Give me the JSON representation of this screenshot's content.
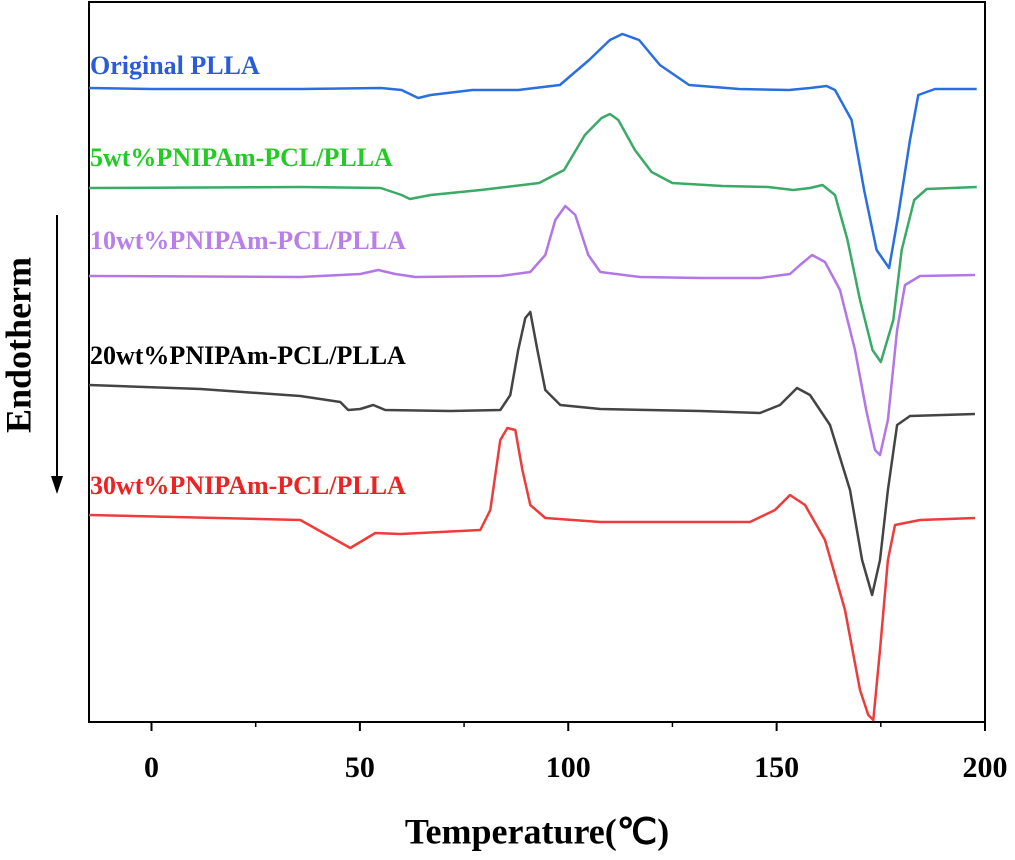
{
  "chart_data": {
    "type": "line",
    "x_label": "Temperature(℃)",
    "y_label": "Endotherm",
    "xlim": [
      -15,
      200
    ],
    "xticks": [
      0,
      50,
      100,
      150,
      200
    ],
    "xminorticks": [
      25,
      75,
      125,
      175
    ],
    "ylim": [
      0,
      720
    ],
    "series": [
      {
        "name": "Original PLLA",
        "color": "#2a6fe0",
        "label_color": "#2a5bdc",
        "x": [
          -15,
          0,
          36,
          55,
          60,
          64,
          67,
          77,
          88,
          98,
          105,
          110,
          113,
          117,
          122,
          129,
          141,
          153,
          158,
          162,
          164,
          168,
          171,
          174,
          177,
          179,
          182,
          184,
          188,
          198
        ],
        "values": [
          634,
          633,
          633,
          634,
          632,
          624,
          627,
          632,
          632,
          637,
          662,
          682,
          688,
          682,
          657,
          637,
          633,
          632,
          634,
          636,
          632,
          602,
          532,
          472,
          454,
          502,
          582,
          627,
          633,
          633
        ]
      },
      {
        "name": "5wt%PNIPAm-PCL/PLLA",
        "color": "#3aaa66",
        "label_color": "#22cc22",
        "x": [
          -15,
          36,
          55,
          60,
          62,
          67,
          79,
          93,
          99,
          104,
          108,
          110,
          112,
          116,
          120,
          125,
          137,
          148,
          154,
          158,
          161,
          164,
          167,
          170,
          173,
          175,
          178,
          180,
          183,
          186,
          198
        ],
        "values": [
          534,
          535,
          534,
          527,
          523,
          527,
          532,
          539,
          552,
          587,
          604,
          608,
          602,
          572,
          550,
          539,
          536,
          535,
          532,
          534,
          537,
          527,
          482,
          422,
          372,
          360,
          402,
          472,
          522,
          533,
          535
        ]
      },
      {
        "name": "10wt%PNIPAm-PCL/PLLA",
        "color": "#b276e6",
        "label_color": "#b87fe8",
        "x": [
          -15,
          35.7,
          50.1,
          54.4,
          58.5,
          63.3,
          83.7,
          90.9,
          94.5,
          96.9,
          99.3,
          101.7,
          104.8,
          107.7,
          117.3,
          131.7,
          146,
          153.2,
          155.6,
          158.5,
          161.6,
          165.2,
          168.8,
          171.5,
          173.6,
          174.8,
          176.7,
          178.9,
          180.8,
          184.4,
          197.6
        ],
        "values": [
          446,
          445,
          448,
          452,
          448,
          445,
          446,
          450,
          467,
          502,
          516,
          507,
          467,
          450,
          445,
          444,
          444,
          448,
          457,
          467,
          460,
          432,
          372,
          312,
          272,
          267,
          302,
          392,
          437,
          446,
          447
        ]
      },
      {
        "name": "20wt%PNIPAm-PCL/PLLA",
        "color": "#444444",
        "label_color": "#000000",
        "x": [
          -15,
          11.8,
          35.7,
          45.3,
          47.2,
          50.1,
          53.2,
          56.1,
          71.7,
          83.7,
          86.1,
          88,
          89.7,
          90.9,
          92.6,
          94.5,
          98.1,
          107.7,
          131.7,
          146,
          150.8,
          154.9,
          158,
          162.8,
          167.6,
          170.5,
          172.9,
          174.8,
          176.7,
          178.9,
          182,
          197.6
        ],
        "values": [
          337,
          333,
          326,
          320,
          312,
          313,
          317,
          312,
          311,
          312,
          327,
          372,
          404,
          410,
          372,
          332,
          317,
          313,
          311,
          309,
          317,
          334,
          327,
          297,
          232,
          162,
          127,
          162,
          232,
          297,
          306,
          308
        ]
      },
      {
        "name": "30wt%PNIPAm-PCL/PLLA",
        "color": "#ee3b3b",
        "label_color": "#ee2222",
        "x": [
          -15,
          35.7,
          47.7,
          53.7,
          59.7,
          78.9,
          81.3,
          83.7,
          85.4,
          87.3,
          89,
          90.9,
          94.5,
          107.7,
          143.6,
          149.6,
          153.2,
          156.8,
          161.6,
          166.4,
          170,
          172,
          173.2,
          174.8,
          176.7,
          178.4,
          184.4,
          197.6
        ],
        "values": [
          207,
          202,
          174,
          189,
          188,
          192,
          212,
          282,
          294,
          292,
          252,
          217,
          204,
          200,
          200,
          212,
          227,
          217,
          182,
          112,
          32,
          7,
          2,
          72,
          162,
          197,
          202,
          204
        ]
      }
    ]
  }
}
